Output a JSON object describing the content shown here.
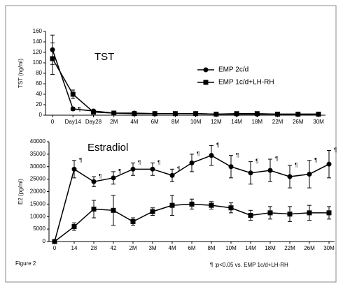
{
  "figure_label": "Figure 2",
  "footnote": "¶ :p<0.05 vs. EMP 1c/d+LH-RH",
  "chart_data": [
    {
      "type": "line",
      "title": "TST",
      "y_label": "TST (ng/ml)",
      "categories": [
        "0",
        "Day14",
        "Day28",
        "2M",
        "4M",
        "6M",
        "8M",
        "10M",
        "12M",
        "14M",
        "18M",
        "22M",
        "26M",
        "30M"
      ],
      "ylim": [
        0,
        160
      ],
      "yticks": [
        0,
        20,
        40,
        60,
        80,
        100,
        120,
        140,
        160
      ],
      "legend": "right",
      "annotation": "¶",
      "annotated": [
        false,
        true,
        false,
        false,
        false,
        false,
        false,
        false,
        false,
        false,
        false,
        false,
        false,
        false
      ],
      "series": [
        {
          "name": "EMP 2c/d",
          "marker": "circle",
          "color": "#000000",
          "values": [
            125,
            12,
            8,
            4,
            4,
            3,
            3,
            3,
            2,
            2,
            2,
            2,
            2,
            2
          ],
          "errors": [
            28,
            3,
            2,
            1,
            1,
            1,
            1,
            1,
            1,
            1,
            1,
            1,
            1,
            1
          ]
        },
        {
          "name": "EMP 1c/d+LH-RH",
          "marker": "square",
          "color": "#000000",
          "values": [
            108,
            40,
            6,
            4,
            3,
            3,
            3,
            3,
            2,
            3,
            3,
            2,
            2,
            2
          ],
          "errors": [
            30,
            8,
            2,
            1,
            1,
            1,
            1,
            1,
            1,
            1,
            1,
            1,
            1,
            1
          ]
        }
      ]
    },
    {
      "type": "line",
      "title": "Estradiol",
      "y_label": "E2 (pg/ml)",
      "categories": [
        "0",
        "14",
        "28",
        "42",
        "2M",
        "3M",
        "4M",
        "6M",
        "8M",
        "10M",
        "14M",
        "18M",
        "22M",
        "26M",
        "30M"
      ],
      "ylim": [
        0,
        40000
      ],
      "yticks": [
        0,
        5000,
        10000,
        15000,
        20000,
        25000,
        30000,
        35000,
        40000
      ],
      "annotation": "¶",
      "annotated": [
        false,
        true,
        true,
        true,
        true,
        true,
        true,
        true,
        true,
        true,
        true,
        true,
        true,
        true,
        true
      ],
      "series": [
        {
          "name": "EMP 2c/d",
          "marker": "circle",
          "color": "#000000",
          "values": [
            0,
            29000,
            24000,
            25500,
            29000,
            29000,
            26500,
            31500,
            34500,
            30000,
            27500,
            28500,
            26000,
            27000,
            31000
          ],
          "errors": [
            0,
            3500,
            2000,
            2500,
            2500,
            2500,
            2500,
            3500,
            4000,
            4500,
            4500,
            4500,
            4500,
            5500,
            5500
          ]
        },
        {
          "name": "EMP 1c/d+LH-RH",
          "marker": "square",
          "color": "#000000",
          "values": [
            0,
            6000,
            13000,
            12500,
            8000,
            12000,
            14500,
            15000,
            14500,
            13500,
            10500,
            11500,
            11000,
            11500,
            11500
          ],
          "errors": [
            0,
            1500,
            3500,
            6000,
            1500,
            1500,
            4000,
            2000,
            1500,
            2000,
            2000,
            2500,
            3000,
            3000,
            2500
          ]
        }
      ]
    }
  ]
}
